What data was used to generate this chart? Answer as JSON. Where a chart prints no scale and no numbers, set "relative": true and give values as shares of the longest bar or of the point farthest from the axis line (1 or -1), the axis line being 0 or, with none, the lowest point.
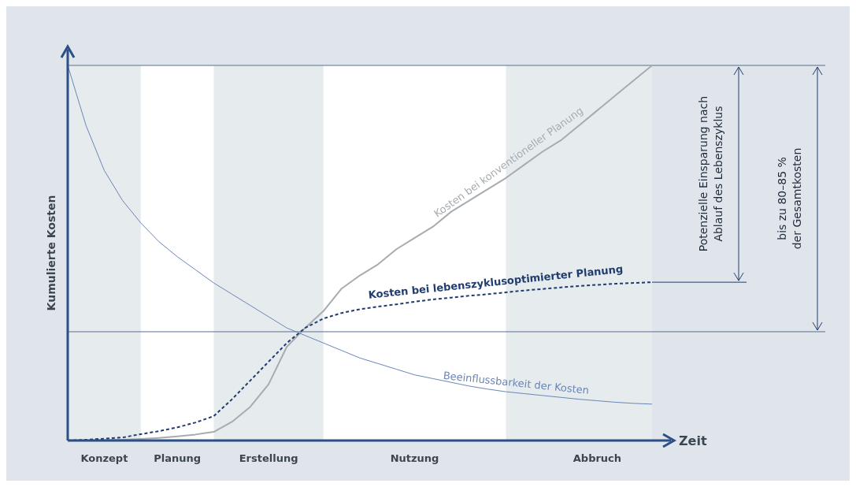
{
  "chart_data": {
    "type": "line",
    "relative": true,
    "xlabel": "Zeit",
    "ylabel": "Kumulierte Kosten",
    "legend": false,
    "categories": [
      null,
      null,
      "Konzept",
      null,
      null,
      null,
      "Planung",
      null,
      null,
      null,
      null,
      "Erstellung",
      null,
      null,
      null,
      null,
      null,
      null,
      null,
      "Nutzung",
      null,
      null,
      null,
      null,
      null,
      null,
      null,
      null,
      null,
      "Abbruch",
      null,
      null,
      null
    ],
    "series": [
      {
        "name": "Kosten bei konventioneller Planung",
        "color": "#a7acb0",
        "line_style": "solid",
        "values": [
          0,
          0,
          0.001,
          0.002,
          0.004,
          0.007,
          0.011,
          0.016,
          0.023,
          0.05,
          0.09,
          0.15,
          0.25,
          0.3,
          0.345,
          0.405,
          0.44,
          0.47,
          0.51,
          0.54,
          0.57,
          0.61,
          0.64,
          0.67,
          0.7,
          0.735,
          0.77,
          0.8,
          0.84,
          0.88,
          0.92,
          0.96,
          1
        ]
      },
      {
        "name": "Kosten bei lebenszyklusoptimierter Planung",
        "color": "#1f3d6e",
        "line_style": "dashed",
        "values": [
          0,
          0.002,
          0.005,
          0.008,
          0.017,
          0.025,
          0.035,
          0.048,
          0.065,
          0.11,
          0.16,
          0.21,
          0.26,
          0.3,
          0.325,
          0.34,
          0.35,
          0.357,
          0.363,
          0.37,
          0.376,
          0.381,
          0.386,
          0.39,
          0.395,
          0.4,
          0.404,
          0.408,
          0.412,
          0.415,
          0.418,
          0.42,
          0.422
        ]
      },
      {
        "name": "Beeinflussbarkeit der Kosten",
        "color": "#6a86b8",
        "line_style": "solid",
        "values": [
          1,
          0.84,
          0.72,
          0.64,
          0.58,
          0.53,
          0.49,
          0.455,
          0.42,
          0.39,
          0.36,
          0.33,
          0.3,
          0.28,
          0.26,
          0.24,
          0.22,
          0.205,
          0.19,
          0.175,
          0.165,
          0.155,
          0.145,
          0.137,
          0.13,
          0.125,
          0.12,
          0.115,
          0.11,
          0.106,
          0.102,
          0.099,
          0.097
        ]
      }
    ],
    "ref_lines": [
      {
        "axis": "y",
        "value": 1,
        "color": "#5a6f8f"
      },
      {
        "axis": "y",
        "value": 0.29,
        "color": "#5a6f8f"
      }
    ],
    "annotations": [
      "Potenzielle Einsparung nach Ablauf des Lebenszyklus",
      "bis zu 80–85 % der Gesamtkosten"
    ]
  }
}
